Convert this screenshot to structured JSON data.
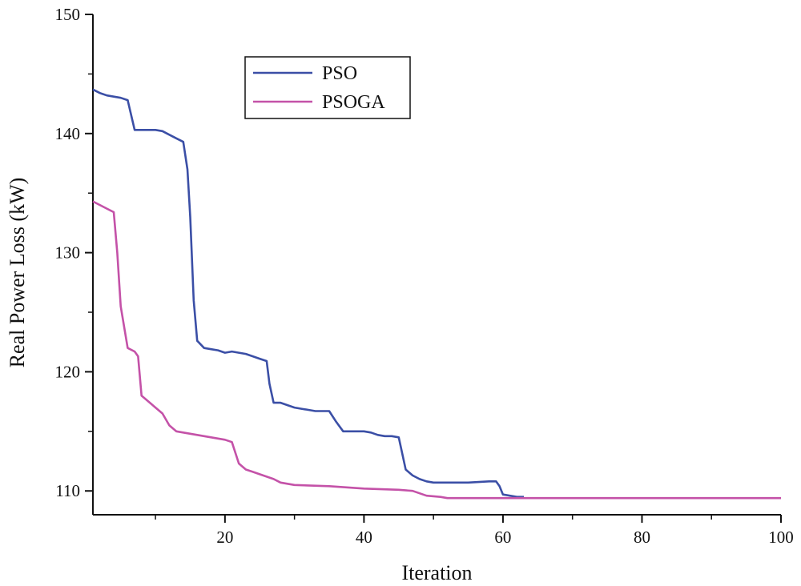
{
  "chart_data": {
    "type": "line",
    "xlabel": "Iteration",
    "ylabel": "Real Power Loss (kW)",
    "xlim": [
      1,
      100
    ],
    "ylim": [
      108,
      150
    ],
    "x_ticks": [
      20,
      40,
      60,
      80,
      100
    ],
    "y_ticks": [
      110,
      120,
      130,
      140,
      150
    ],
    "grid": false,
    "legend_position": "top-left-inside",
    "series": [
      {
        "name": "PSO",
        "color": "#3b4fa6",
        "points": [
          [
            1,
            143.7
          ],
          [
            2,
            143.4
          ],
          [
            3,
            143.2
          ],
          [
            4,
            143.1
          ],
          [
            5,
            143.0
          ],
          [
            6,
            142.8
          ],
          [
            7,
            140.3
          ],
          [
            8,
            140.3
          ],
          [
            10,
            140.3
          ],
          [
            11,
            140.2
          ],
          [
            12,
            139.9
          ],
          [
            13,
            139.6
          ],
          [
            14,
            139.3
          ],
          [
            14.6,
            137.0
          ],
          [
            15,
            133.0
          ],
          [
            15.5,
            126.0
          ],
          [
            16,
            122.6
          ],
          [
            17,
            122.0
          ],
          [
            18,
            121.9
          ],
          [
            19,
            121.8
          ],
          [
            20,
            121.6
          ],
          [
            21,
            121.7
          ],
          [
            22,
            121.6
          ],
          [
            23,
            121.5
          ],
          [
            24,
            121.3
          ],
          [
            25,
            121.1
          ],
          [
            26,
            120.9
          ],
          [
            26.4,
            119.0
          ],
          [
            27,
            117.4
          ],
          [
            28,
            117.4
          ],
          [
            29,
            117.2
          ],
          [
            30,
            117.0
          ],
          [
            31,
            116.9
          ],
          [
            32,
            116.8
          ],
          [
            33,
            116.7
          ],
          [
            34,
            116.7
          ],
          [
            35,
            116.7
          ],
          [
            36,
            115.8
          ],
          [
            37,
            115.0
          ],
          [
            38,
            115.0
          ],
          [
            40,
            115.0
          ],
          [
            41,
            114.9
          ],
          [
            42,
            114.7
          ],
          [
            43,
            114.6
          ],
          [
            44,
            114.6
          ],
          [
            45,
            114.5
          ],
          [
            46,
            111.8
          ],
          [
            47,
            111.3
          ],
          [
            48,
            111.0
          ],
          [
            49,
            110.8
          ],
          [
            50,
            110.7
          ],
          [
            52,
            110.7
          ],
          [
            55,
            110.7
          ],
          [
            58,
            110.8
          ],
          [
            59,
            110.8
          ],
          [
            59.5,
            110.4
          ],
          [
            60,
            109.7
          ],
          [
            61,
            109.6
          ],
          [
            62,
            109.5
          ],
          [
            63,
            109.5
          ]
        ]
      },
      {
        "name": "PSOGA",
        "color": "#c452a8",
        "points": [
          [
            1,
            134.3
          ],
          [
            2,
            134.0
          ],
          [
            3,
            133.7
          ],
          [
            4,
            133.4
          ],
          [
            4.5,
            130.0
          ],
          [
            5,
            125.5
          ],
          [
            6,
            122.0
          ],
          [
            7,
            121.7
          ],
          [
            7.5,
            121.3
          ],
          [
            8,
            118.0
          ],
          [
            9,
            117.5
          ],
          [
            10,
            117.0
          ],
          [
            11,
            116.5
          ],
          [
            12,
            115.5
          ],
          [
            13,
            115.0
          ],
          [
            14,
            114.9
          ],
          [
            15,
            114.8
          ],
          [
            16,
            114.7
          ],
          [
            17,
            114.6
          ],
          [
            18,
            114.5
          ],
          [
            19,
            114.4
          ],
          [
            20,
            114.3
          ],
          [
            21,
            114.1
          ],
          [
            22,
            112.3
          ],
          [
            23,
            111.8
          ],
          [
            24,
            111.6
          ],
          [
            25,
            111.4
          ],
          [
            26,
            111.2
          ],
          [
            27,
            111.0
          ],
          [
            28,
            110.7
          ],
          [
            29,
            110.6
          ],
          [
            30,
            110.5
          ],
          [
            35,
            110.4
          ],
          [
            40,
            110.2
          ],
          [
            45,
            110.1
          ],
          [
            47,
            110.0
          ],
          [
            49,
            109.6
          ],
          [
            51,
            109.5
          ],
          [
            52,
            109.4
          ],
          [
            60,
            109.4
          ],
          [
            70,
            109.4
          ],
          [
            80,
            109.4
          ],
          [
            90,
            109.4
          ],
          [
            100,
            109.4
          ]
        ]
      }
    ]
  }
}
